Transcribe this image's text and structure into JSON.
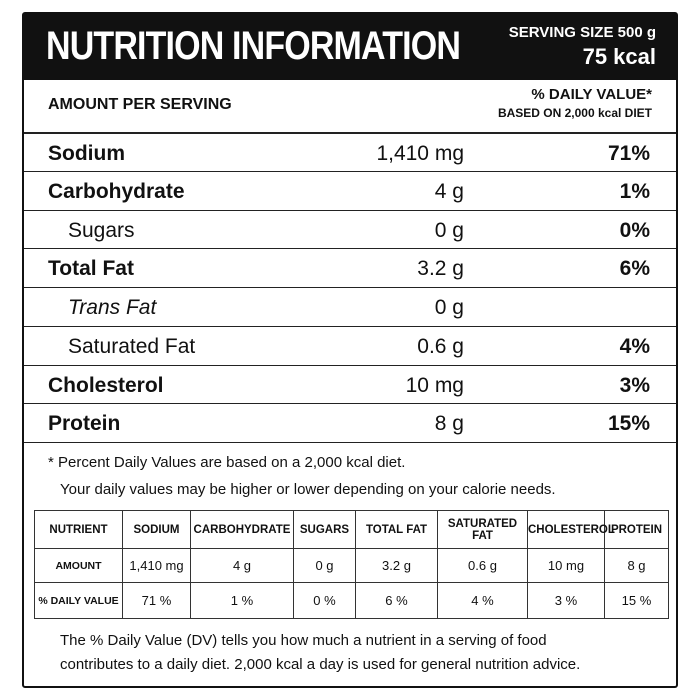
{
  "header": {
    "title": "NUTRITION INFORMATION",
    "serving_size": "SERVING SIZE 500 g",
    "calories": "75 kcal"
  },
  "subheader": {
    "left": "AMOUNT PER SERVING",
    "right": "% DAILY VALUE*",
    "right_note": "BASED ON 2,000 kcal DIET"
  },
  "rows": [
    {
      "name": "Sodium",
      "amount": "1,410 mg",
      "dv": "71%",
      "style": "bold"
    },
    {
      "name": "Carbohydrate",
      "amount": "4 g",
      "dv": "1%",
      "style": "bold"
    },
    {
      "name": "Sugars",
      "amount": "0 g",
      "dv": "0%",
      "style": "indent"
    },
    {
      "name": "Total Fat",
      "amount": "3.2 g",
      "dv": "6%",
      "style": "bold"
    },
    {
      "name": "Trans Fat",
      "amount": "0 g",
      "style": "italic"
    },
    {
      "name": "Saturated Fat",
      "amount": "0.6 g",
      "dv": "4%",
      "style": "indent"
    },
    {
      "name": "Cholesterol",
      "amount": "10 mg",
      "dv": "3%",
      "style": "bold"
    },
    {
      "name": "Protein",
      "amount": "8 g",
      "dv": "15%",
      "style": "bold"
    }
  ],
  "footnote": [
    "* Percent Daily Values are based on a 2,000 kcal diet.",
    "Your daily values may be higher or lower depending on your calorie needs."
  ],
  "table": {
    "header": [
      "NUTRIENT",
      "SODIUM",
      "CARBOHYDRATE",
      "SUGARS",
      "TOTAL FAT",
      "SATURATED FAT",
      "CHOLESTEROL",
      "PROTEIN"
    ],
    "rows": [
      [
        "AMOUNT",
        "1,410 mg",
        "4 g",
        "0 g",
        "3.2 g",
        "0.6 g",
        "10 mg",
        "8 g"
      ],
      [
        "% DAILY VALUE",
        "71 %",
        "1 %",
        "0 %",
        "6 %",
        "4 %",
        "3 %",
        "15 %"
      ]
    ]
  },
  "note": [
    "The % Daily Value (DV) tells you how much a nutrient in a serving of food",
    "contributes to a daily diet. 2,000 kcal a day is used for general nutrition advice."
  ]
}
